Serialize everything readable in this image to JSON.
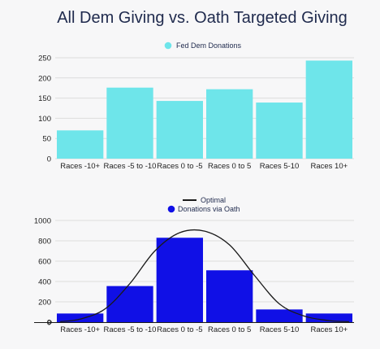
{
  "title": "All Dem Giving vs. Oath Targeted Giving",
  "colors": {
    "top_bar": "#6ee5ea",
    "bottom_bar": "#1010e6",
    "curve": "#1a1a1a",
    "title": "#1f2a4d"
  },
  "chart_data": [
    {
      "type": "bar",
      "title": "",
      "categories": [
        "Races -10+",
        "Races -5 to -10",
        "Races 0 to -5",
        "Races 0 to 5",
        "Races 5-10",
        "Races 10+"
      ],
      "series": [
        {
          "name": "Fed Dem Donations",
          "values": [
            70,
            176,
            143,
            172,
            139,
            243
          ]
        }
      ],
      "yticks": [
        "0",
        "50",
        "100",
        "150",
        "200",
        "250"
      ],
      "ylim": [
        0,
        250
      ],
      "grid": true,
      "legend": "top-center"
    },
    {
      "type": "bar",
      "title": "",
      "categories": [
        "Races -10+",
        "Races -5 to -10",
        "Races 0 to -5",
        "Races 0 to 5",
        "Races 5-10",
        "Races 10+"
      ],
      "series": [
        {
          "name": "Donations via Oath",
          "values": [
            85,
            355,
            830,
            510,
            125,
            85
          ]
        }
      ],
      "overlay": {
        "name": "Optimal",
        "type": "line",
        "x": [
          -0.4,
          0,
          0.5,
          1,
          1.5,
          2,
          2.5,
          3,
          3.5,
          4,
          4.5,
          5,
          5.4
        ],
        "y": [
          5,
          30,
          130,
          380,
          700,
          880,
          895,
          760,
          460,
          180,
          60,
          15,
          5
        ]
      },
      "yticks": [
        "0",
        "200",
        "400",
        "600",
        "800",
        "1000"
      ],
      "ylim": [
        0,
        1000
      ],
      "grid": true,
      "legend": "top-center"
    }
  ]
}
